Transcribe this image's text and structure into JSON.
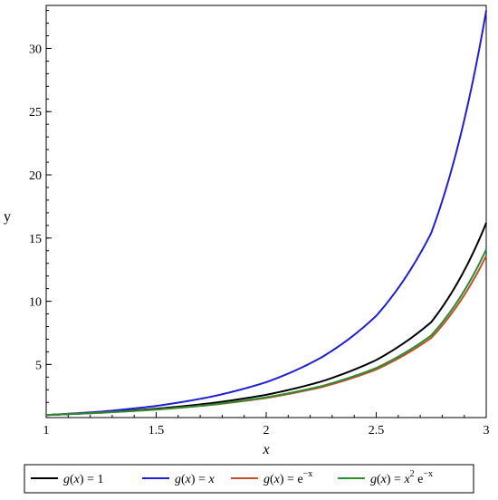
{
  "chart_data": {
    "type": "line",
    "xlabel": "x",
    "ylabel": "y",
    "xlim": [
      1,
      3
    ],
    "ylim": [
      0.8,
      33.4
    ],
    "x_ticks": [
      1,
      1.5,
      2,
      2.5,
      3
    ],
    "x_tick_labels": [
      "1",
      "1.5",
      "2",
      "2.5",
      "3"
    ],
    "y_ticks": [
      5,
      10,
      15,
      20,
      25,
      30
    ],
    "y_tick_labels": [
      "5",
      "10",
      "15",
      "20",
      "25",
      "30"
    ],
    "grid": false,
    "legend_placement": "bottom",
    "x": [
      1,
      1.25,
      1.5,
      1.75,
      2,
      2.25,
      2.5,
      2.75,
      3
    ],
    "series": [
      {
        "name": "g(x) = 1",
        "color": "#000000",
        "values": [
          1,
          1.2,
          1.5,
          1.94,
          2.6,
          3.65,
          5.35,
          8.35,
          16.2
        ]
      },
      {
        "name": "g(x) = x",
        "color": "#1f1fd6",
        "values": [
          1,
          1.27,
          1.72,
          2.45,
          3.6,
          5.55,
          8.85,
          15.4,
          33.0
        ]
      },
      {
        "name": "g(x) = e^(-x)",
        "color": "#c0502b",
        "values": [
          1,
          1.18,
          1.43,
          1.8,
          2.35,
          3.2,
          4.6,
          7.1,
          13.6
        ]
      },
      {
        "name": "g(x) = x^2 e^(-x)",
        "color": "#2e8b2e",
        "values": [
          1,
          1.18,
          1.44,
          1.82,
          2.4,
          3.28,
          4.72,
          7.3,
          14.1
        ]
      }
    ]
  },
  "legend": {
    "items": [
      {
        "lhs": "g",
        "arg": "x",
        "eq": "= 1",
        "base": "",
        "sup": "",
        "tail": ""
      },
      {
        "lhs": "g",
        "arg": "x",
        "eq": "= ",
        "base": "x",
        "sup": "",
        "tail": ""
      },
      {
        "lhs": "g",
        "arg": "x",
        "eq": "= e",
        "base": "",
        "sup": "−x",
        "tail": ""
      },
      {
        "lhs": "g",
        "arg": "x",
        "eq": "= ",
        "base": "x",
        "sup": "2",
        "tail": " e",
        "sup2": "−x"
      }
    ]
  }
}
